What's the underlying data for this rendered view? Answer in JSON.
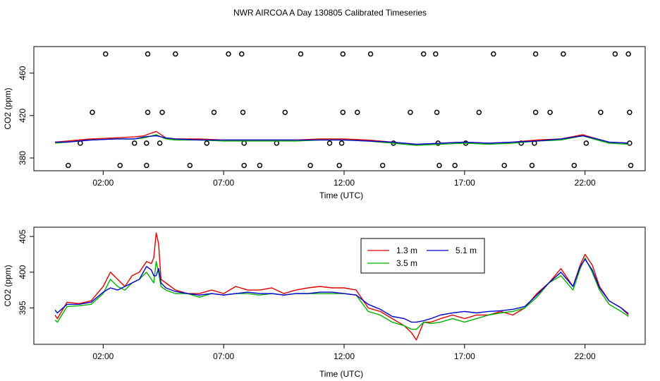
{
  "title": "NWR AIRCOA A  Day 130805  Calibrated Timeseries",
  "chart_data": [
    {
      "type": "scatter+line",
      "xlabel": "Time (UTC)",
      "ylabel": "CO2 (ppm)",
      "xlim": [
        0,
        24
      ],
      "ylim": [
        368,
        485
      ],
      "xticks": [
        {
          "v": 2,
          "label": "02:00"
        },
        {
          "v": 7,
          "label": "07:00"
        },
        {
          "v": 12,
          "label": "12:00"
        },
        {
          "v": 17,
          "label": "17:00"
        },
        {
          "v": 22,
          "label": "22:00"
        }
      ],
      "yticks": [
        {
          "v": 380,
          "label": "380"
        },
        {
          "v": 420,
          "label": "420"
        },
        {
          "v": 460,
          "label": "460"
        }
      ],
      "calibration_points": {
        "y478": [
          2.1,
          3.85,
          5.0,
          7.2,
          7.75,
          10.2,
          11.95,
          13.1,
          15.3,
          15.8,
          18.2,
          19.95,
          21.1,
          23.25,
          23.8
        ],
        "y423": [
          1.55,
          3.85,
          4.45,
          6.6,
          7.8,
          9.55,
          11.95,
          12.55,
          14.75,
          15.85,
          17.6,
          19.95,
          20.55,
          22.65,
          23.85
        ],
        "y394": [
          1.05,
          3.3,
          3.8,
          4.35,
          6.3,
          7.85,
          9.2,
          11.4,
          11.9,
          14.05,
          15.9,
          17.05,
          19.35,
          19.9,
          22.05,
          23.85
        ],
        "y373": [
          0.55,
          2.7,
          3.8,
          5.6,
          7.85,
          8.5,
          10.6,
          11.8,
          13.6,
          15.95,
          16.6,
          18.65,
          19.8,
          21.55,
          23.9
        ]
      },
      "series": [
        {
          "name": "1.3 m",
          "color": "#e00000",
          "x": [
            0,
            0.5,
            1.5,
            2.5,
            3.3,
            3.7,
            4.2,
            4.6,
            5,
            6,
            7,
            8,
            9,
            10,
            11,
            12,
            13,
            14,
            15,
            16,
            17,
            18,
            19,
            20,
            21,
            21.9,
            22.5,
            23,
            23.8
          ],
          "y": [
            395,
            396,
            398,
            399,
            400,
            401,
            405,
            399,
            398,
            398,
            397,
            397,
            397,
            397,
            398,
            398,
            397,
            395,
            392,
            394,
            395,
            394,
            395,
            397,
            398,
            402,
            398,
            395,
            394
          ]
        },
        {
          "name": "3.5 m",
          "color": "#00b000",
          "x": [
            0,
            0.5,
            1.5,
            2.5,
            3.3,
            3.7,
            4.2,
            4.6,
            5,
            6,
            7,
            8,
            9,
            10,
            11,
            12,
            13,
            14,
            15,
            16,
            17,
            18,
            19,
            20,
            21,
            21.9,
            22.5,
            23,
            23.8
          ],
          "y": [
            394,
            395,
            397,
            398,
            398,
            399,
            402,
            398,
            397,
            397,
            396,
            396,
            396,
            396,
            397,
            397,
            396,
            394,
            392,
            393,
            394,
            393,
            394,
            396,
            397,
            401,
            397,
            394,
            393
          ]
        },
        {
          "name": "5.1 m",
          "color": "#0000d0",
          "x": [
            0,
            0.5,
            1.5,
            2.5,
            3.3,
            3.7,
            4.2,
            4.6,
            5,
            6,
            7,
            8,
            9,
            10,
            11,
            12,
            13,
            14,
            15,
            16,
            17,
            18,
            19,
            20,
            21,
            21.9,
            22.5,
            23,
            23.8
          ],
          "y": [
            395,
            395,
            397,
            398,
            398,
            400,
            401,
            399,
            398,
            397,
            397,
            397,
            397,
            397,
            397,
            397,
            396,
            395,
            393,
            394,
            395,
            394,
            395,
            396,
            398,
            401,
            398,
            395,
            394
          ]
        }
      ]
    },
    {
      "type": "line",
      "xlabel": "Time (UTC)",
      "ylabel": "CO2 (ppm)",
      "xlim": [
        0,
        24
      ],
      "ylim": [
        389.9,
        406.3
      ],
      "xticks": [
        {
          "v": 2,
          "label": "02:00"
        },
        {
          "v": 7,
          "label": "07:00"
        },
        {
          "v": 12,
          "label": "12:00"
        },
        {
          "v": 17,
          "label": "17:00"
        },
        {
          "v": 22,
          "label": "22:00"
        }
      ],
      "yticks": [
        {
          "v": 395,
          "label": "395"
        },
        {
          "v": 400,
          "label": "400"
        },
        {
          "v": 405,
          "label": "405"
        }
      ],
      "legend": {
        "position": "top-center",
        "entries": [
          {
            "label": "1.3 m",
            "series": 0
          },
          {
            "label": "5.1 m",
            "series": 2
          },
          {
            "label": "3.5 m",
            "series": 1
          }
        ]
      },
      "series": [
        {
          "name": "1.3 m",
          "color": "#e00000",
          "x": [
            0,
            0.1,
            0.5,
            1,
            1.5,
            2,
            2.3,
            2.6,
            2.9,
            3.2,
            3.5,
            3.8,
            4.0,
            4.1,
            4.2,
            4.3,
            4.4,
            4.6,
            5,
            5.5,
            6,
            6.5,
            7,
            7.5,
            8,
            8.5,
            9,
            9.5,
            10,
            10.5,
            11,
            11.5,
            12,
            12.5,
            13,
            13.5,
            14,
            14.5,
            14.8,
            15,
            15.3,
            15.6,
            16,
            16.5,
            17,
            17.5,
            18,
            18.5,
            19,
            19.5,
            20,
            20.5,
            21,
            21.5,
            21.8,
            22,
            22.3,
            22.6,
            23,
            23.5,
            23.8
          ],
          "y": [
            394,
            393.5,
            395.8,
            395.6,
            396,
            398,
            400,
            399,
            398,
            399.5,
            400,
            401.5,
            401.2,
            402,
            405.5,
            404,
            399,
            398.5,
            397.5,
            397,
            397,
            397.5,
            397,
            398,
            397.5,
            397.5,
            397.8,
            397,
            397.5,
            397.8,
            398,
            397.8,
            397.8,
            397.5,
            395,
            394.5,
            393.5,
            392.5,
            391.5,
            390.5,
            393,
            393,
            393.5,
            394,
            393.5,
            394,
            394,
            394.5,
            394,
            395,
            397,
            398.5,
            400.5,
            398,
            401,
            402.5,
            401,
            398,
            396,
            395,
            394
          ]
        },
        {
          "name": "3.5 m",
          "color": "#00b000",
          "x": [
            0,
            0.1,
            0.5,
            1,
            1.5,
            2,
            2.3,
            2.6,
            2.9,
            3.2,
            3.5,
            3.8,
            4.0,
            4.1,
            4.2,
            4.3,
            4.4,
            4.6,
            5,
            5.5,
            6,
            6.5,
            7,
            7.5,
            8,
            8.5,
            9,
            9.5,
            10,
            10.5,
            11,
            11.5,
            12,
            12.5,
            13,
            13.5,
            14,
            14.5,
            14.8,
            15,
            15.3,
            15.6,
            16,
            16.5,
            17,
            17.5,
            18,
            18.5,
            19,
            19.5,
            20,
            20.5,
            21,
            21.5,
            21.8,
            22,
            22.3,
            22.6,
            23,
            23.5,
            23.8
          ],
          "y": [
            393.3,
            393,
            395.2,
            395.3,
            395.5,
            397,
            399,
            398,
            397.5,
            398.5,
            399,
            400,
            399,
            398.5,
            401.5,
            400,
            398,
            397.5,
            397,
            397,
            396.5,
            397,
            396.8,
            397,
            397,
            396.8,
            397,
            396.8,
            397,
            397,
            397,
            397,
            397,
            396.8,
            394.5,
            394,
            393,
            392.5,
            392,
            392,
            393,
            392.8,
            393,
            393.5,
            393,
            393.5,
            394,
            394.3,
            394.5,
            395,
            396.5,
            398.5,
            399.5,
            397.5,
            400.5,
            402,
            400,
            397.5,
            395.5,
            394.5,
            393.8
          ]
        },
        {
          "name": "5.1 m",
          "color": "#0000d0",
          "x": [
            0,
            0.1,
            0.5,
            1,
            1.5,
            2,
            2.3,
            2.6,
            2.9,
            3.2,
            3.5,
            3.8,
            4.0,
            4.1,
            4.2,
            4.3,
            4.4,
            4.6,
            5,
            5.5,
            6,
            6.5,
            7,
            7.5,
            8,
            8.5,
            9,
            9.5,
            10,
            10.5,
            11,
            11.5,
            12,
            12.5,
            13,
            13.5,
            14,
            14.5,
            14.8,
            15,
            15.3,
            15.6,
            16,
            16.5,
            17,
            17.5,
            18,
            18.5,
            19,
            19.5,
            20,
            20.5,
            21,
            21.5,
            21.8,
            22,
            22.3,
            22.6,
            23,
            23.5,
            23.8
          ],
          "y": [
            394.7,
            394.3,
            395.5,
            395.5,
            395.8,
            397.2,
            397.8,
            397.5,
            398,
            398.5,
            399,
            400.8,
            400.3,
            399.5,
            399.5,
            400.5,
            398.5,
            397.8,
            397.3,
            397,
            396.8,
            397,
            396.8,
            397,
            397.2,
            397,
            397,
            396.8,
            397,
            397,
            397.2,
            397.2,
            397,
            396.8,
            395.5,
            394.8,
            393.8,
            393.5,
            393,
            393,
            393.2,
            393.5,
            394,
            394.3,
            394.5,
            394.3,
            394.5,
            394.6,
            394.8,
            395.2,
            396.8,
            398.5,
            400,
            398,
            400.8,
            401.8,
            400.3,
            397.8,
            396,
            395,
            394.2
          ]
        }
      ]
    }
  ]
}
